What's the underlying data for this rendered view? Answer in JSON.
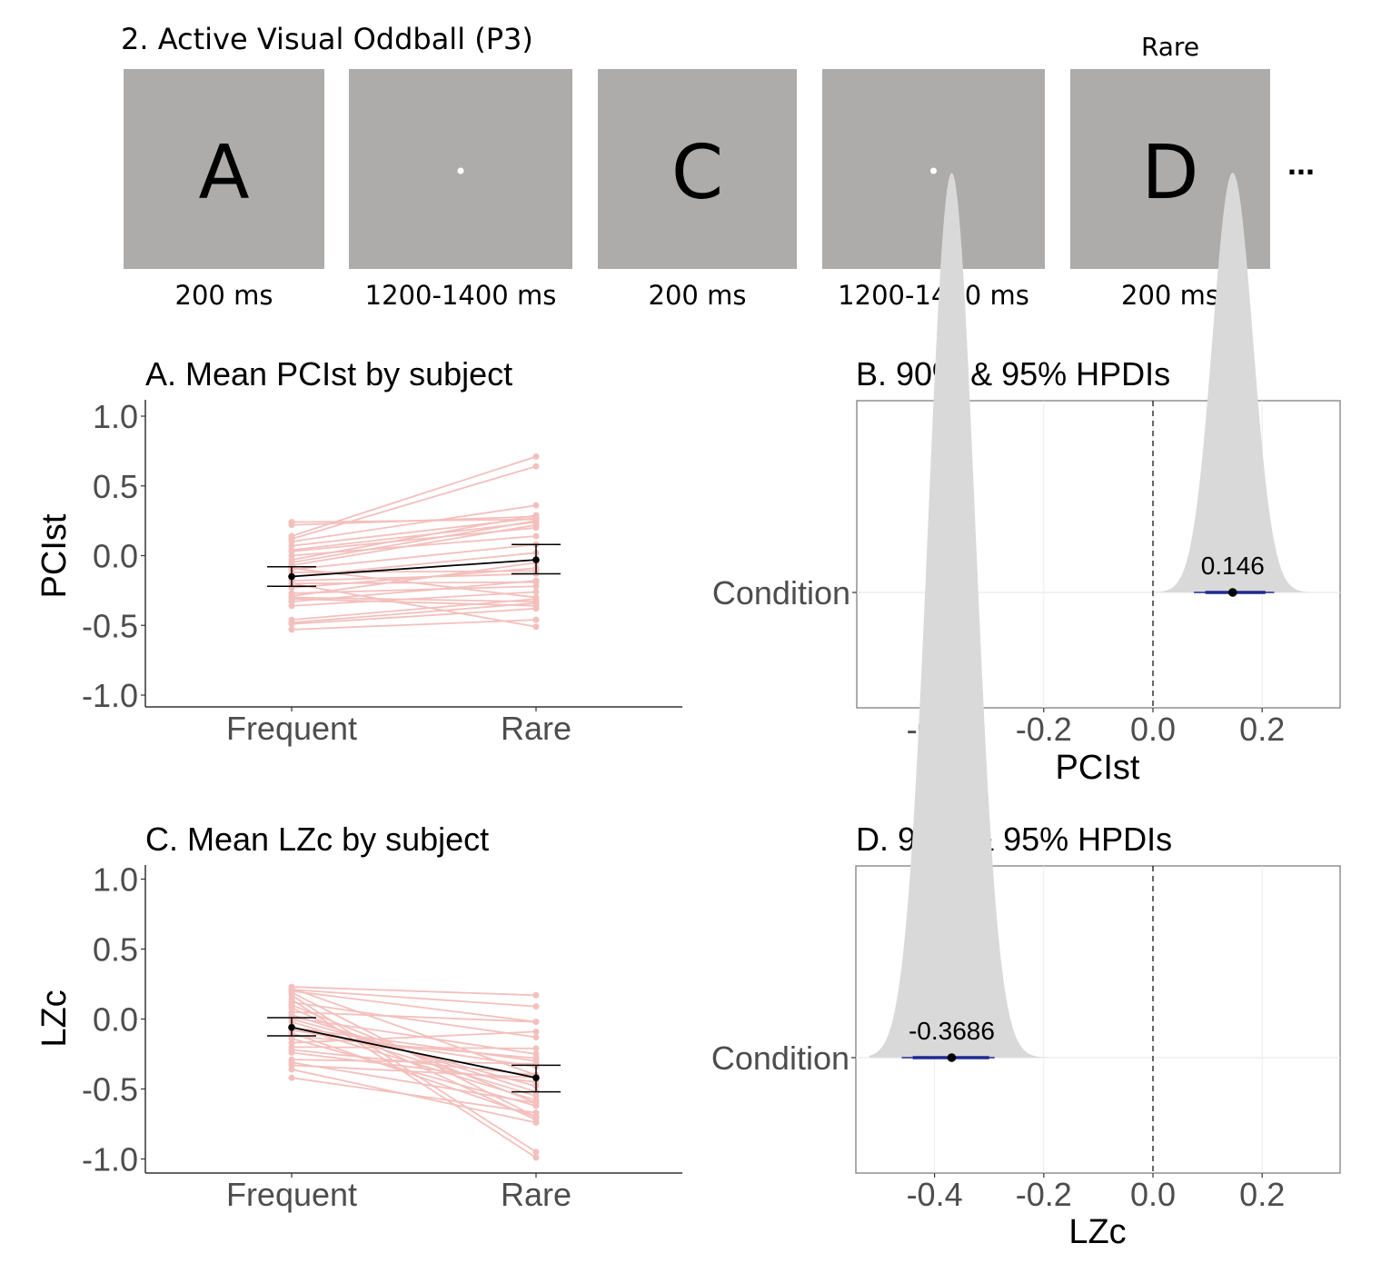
{
  "paradigm": {
    "title": "2. Active Visual Oddball (P3)",
    "rare_label": "Rare",
    "ellipsis": "...",
    "screen_color": "#adacab",
    "frames": [
      {
        "content": "A",
        "type": "letter",
        "duration": "200 ms"
      },
      {
        "content": "",
        "type": "fixation",
        "duration": "1200-1400 ms"
      },
      {
        "content": "C",
        "type": "letter",
        "duration": "200 ms"
      },
      {
        "content": "",
        "type": "fixation",
        "duration": "1200-1400 ms"
      },
      {
        "content": "D",
        "type": "letter",
        "duration": "200 ms"
      }
    ]
  },
  "chart_data": [
    {
      "id": "A",
      "type": "line",
      "title": "A. Mean PCIst by subject",
      "xlabel": "",
      "ylabel": "PCIst",
      "categories": [
        "Frequent",
        "Rare"
      ],
      "ylim": [
        -1.1,
        1.1
      ],
      "yticks": [
        1.0,
        0.5,
        0.0,
        -0.5,
        -1.0
      ],
      "ytick_labels": [
        "1.0",
        "0.5",
        "0.0",
        "-0.5",
        "-1.0"
      ],
      "subject_color": "#e8837d",
      "subjects": [
        [
          0.24,
          0.26
        ],
        [
          0.22,
          0.28
        ],
        [
          0.14,
          0.71
        ],
        [
          0.12,
          0.64
        ],
        [
          0.1,
          0.36
        ],
        [
          0.07,
          0.27
        ],
        [
          0.04,
          0.24
        ],
        [
          0.03,
          0.2
        ],
        [
          0.0,
          0.14
        ],
        [
          -0.03,
          0.29
        ],
        [
          -0.05,
          0.25
        ],
        [
          -0.07,
          0.22
        ],
        [
          -0.1,
          0.08
        ],
        [
          -0.12,
          -0.11
        ],
        [
          -0.15,
          0.02
        ],
        [
          -0.18,
          -0.13
        ],
        [
          -0.2,
          -0.19
        ],
        [
          -0.23,
          -0.09
        ],
        [
          -0.27,
          -0.22
        ],
        [
          -0.29,
          -0.05
        ],
        [
          -0.3,
          -0.33
        ],
        [
          -0.31,
          -0.36
        ],
        [
          -0.33,
          -0.18
        ],
        [
          -0.36,
          -0.26
        ],
        [
          -0.46,
          -0.31
        ],
        [
          -0.48,
          -0.34
        ],
        [
          -0.49,
          -0.38
        ],
        [
          -0.53,
          -0.46
        ],
        [
          -0.2,
          -0.51
        ],
        [
          -0.09,
          -0.3
        ]
      ],
      "mean": {
        "values": [
          -0.15,
          -0.03
        ],
        "ci_low": [
          -0.22,
          -0.13
        ],
        "ci_high": [
          -0.08,
          0.08
        ]
      }
    },
    {
      "id": "B",
      "type": "area",
      "title": "B. 90% & 95% HPDIs",
      "xlabel": "PCIst",
      "ylabel": "",
      "y_category": "Condition",
      "xlim": [
        -0.54,
        0.32
      ],
      "xticks": [
        -0.4,
        -0.2,
        0.0,
        0.2
      ],
      "xtick_labels": [
        "-0.4",
        "-0.2",
        "0.0",
        "0.2"
      ],
      "reference_line": 0.0,
      "estimate": 0.146,
      "estimate_label": "0.146",
      "hpdi90": [
        0.096,
        0.206
      ],
      "hpdi95": [
        0.075,
        0.222
      ],
      "density": {
        "mean": 0.146,
        "sd": 0.037,
        "range": [
          0.0,
          0.28
        ]
      },
      "density_color": "#d9d9d9",
      "interval_color": "#1f2a8f"
    },
    {
      "id": "C",
      "type": "line",
      "title": "C. Mean LZc by subject",
      "xlabel": "",
      "ylabel": "LZc",
      "categories": [
        "Frequent",
        "Rare"
      ],
      "ylim": [
        -1.1,
        1.1
      ],
      "yticks": [
        1.0,
        0.5,
        0.0,
        -0.5,
        -1.0
      ],
      "ytick_labels": [
        "1.0",
        "0.5",
        "0.0",
        "-0.5",
        "-1.0"
      ],
      "subject_color": "#e8837d",
      "subjects": [
        [
          0.23,
          0.17
        ],
        [
          0.22,
          -0.4
        ],
        [
          0.21,
          0.09
        ],
        [
          0.2,
          -0.02
        ],
        [
          0.19,
          -0.7
        ],
        [
          0.17,
          -0.95
        ],
        [
          0.14,
          -0.99
        ],
        [
          0.12,
          -0.13
        ],
        [
          0.1,
          -0.6
        ],
        [
          0.08,
          -0.72
        ],
        [
          0.05,
          -0.02
        ],
        [
          0.03,
          -0.52
        ],
        [
          0.01,
          -0.25
        ],
        [
          -0.02,
          -0.55
        ],
        [
          -0.05,
          -0.58
        ],
        [
          -0.08,
          -0.34
        ],
        [
          -0.1,
          -0.7
        ],
        [
          -0.12,
          -0.28
        ],
        [
          -0.14,
          -0.62
        ],
        [
          -0.2,
          -0.21
        ],
        [
          -0.22,
          -0.4
        ],
        [
          -0.24,
          -0.45
        ],
        [
          -0.29,
          -0.32
        ],
        [
          -0.31,
          -0.6
        ],
        [
          -0.33,
          -0.42
        ],
        [
          -0.36,
          -0.74
        ],
        [
          -0.42,
          -0.67
        ],
        [
          -0.17,
          -0.09
        ],
        [
          -0.06,
          -0.3
        ],
        [
          0.0,
          -0.48
        ]
      ],
      "mean": {
        "values": [
          -0.06,
          -0.42
        ],
        "ci_low": [
          -0.12,
          -0.52
        ],
        "ci_high": [
          0.01,
          -0.33
        ]
      }
    },
    {
      "id": "D",
      "type": "area",
      "title": "D. 90% & 95% HPDIs",
      "xlabel": "LZc",
      "ylabel": "",
      "y_category": "Condition",
      "xlim": [
        -0.54,
        0.32
      ],
      "xticks": [
        -0.4,
        -0.2,
        0.0,
        0.2
      ],
      "xtick_labels": [
        "-0.4",
        "-0.2",
        "0.0",
        "0.2"
      ],
      "reference_line": 0.0,
      "estimate": -0.3686,
      "estimate_label": "-0.3686",
      "hpdi90": [
        -0.44,
        -0.3
      ],
      "hpdi95": [
        -0.46,
        -0.29
      ],
      "density": {
        "mean": -0.3686,
        "sd": 0.043,
        "range": [
          -0.52,
          -0.19
        ]
      },
      "density_color": "#d9d9d9",
      "interval_color": "#1f2a8f"
    }
  ]
}
